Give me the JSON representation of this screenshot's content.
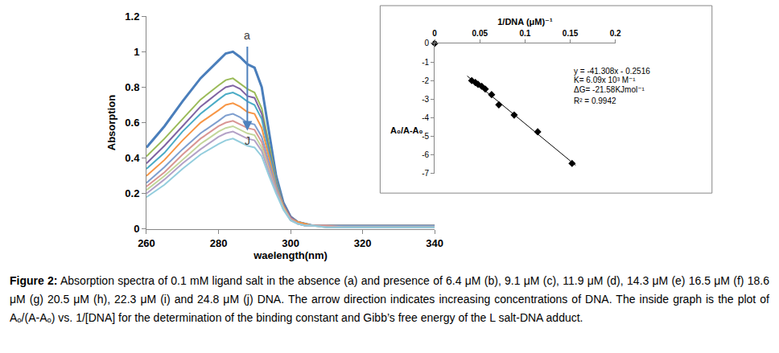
{
  "chart_data": [
    {
      "type": "line",
      "x_label": "waelength(nm)",
      "y_label": "Absorption",
      "x": [
        260,
        265,
        270,
        275,
        280,
        282,
        284,
        286,
        288,
        290,
        292,
        294,
        296,
        298,
        300,
        302,
        304,
        306,
        310,
        315,
        320,
        330,
        340
      ],
      "xlim": [
        260,
        340
      ],
      "xticks": [
        260,
        280,
        300,
        320,
        340
      ],
      "ylim": [
        0,
        1.2
      ],
      "yticks": [
        0,
        0.2,
        0.4,
        0.6,
        0.8,
        1,
        1.2
      ],
      "grid": false,
      "series": [
        {
          "color": "#4A7EBB",
          "values": [
            0.46,
            0.58,
            0.72,
            0.85,
            0.95,
            0.99,
            1.0,
            0.97,
            0.93,
            0.91,
            0.8,
            0.55,
            0.3,
            0.15,
            0.07,
            0.04,
            0.03,
            0.02,
            0.02,
            0.02,
            0.02,
            0.02,
            0.02
          ]
        },
        {
          "color": "#9BBB59",
          "values": [
            0.41,
            0.51,
            0.62,
            0.73,
            0.81,
            0.84,
            0.85,
            0.82,
            0.79,
            0.77,
            0.68,
            0.48,
            0.28,
            0.14,
            0.07,
            0.04,
            0.03,
            0.02,
            0.02,
            0.02,
            0.02,
            0.02,
            0.02
          ]
        },
        {
          "color": "#8064A2",
          "values": [
            0.37,
            0.47,
            0.58,
            0.69,
            0.77,
            0.8,
            0.81,
            0.79,
            0.75,
            0.74,
            0.65,
            0.45,
            0.27,
            0.14,
            0.07,
            0.04,
            0.03,
            0.02,
            0.02,
            0.02,
            0.02,
            0.02,
            0.02
          ]
        },
        {
          "color": "#4BACC6",
          "values": [
            0.34,
            0.43,
            0.55,
            0.65,
            0.73,
            0.76,
            0.77,
            0.75,
            0.72,
            0.7,
            0.62,
            0.43,
            0.26,
            0.13,
            0.06,
            0.04,
            0.03,
            0.02,
            0.02,
            0.02,
            0.02,
            0.02,
            0.02
          ]
        },
        {
          "color": "#F79646",
          "values": [
            0.3,
            0.39,
            0.5,
            0.6,
            0.67,
            0.7,
            0.71,
            0.69,
            0.66,
            0.65,
            0.57,
            0.4,
            0.24,
            0.13,
            0.06,
            0.04,
            0.03,
            0.02,
            0.02,
            0.02,
            0.02,
            0.02,
            0.02
          ]
        },
        {
          "color": "#7F9FCF",
          "values": [
            0.26,
            0.35,
            0.45,
            0.54,
            0.61,
            0.64,
            0.65,
            0.63,
            0.6,
            0.59,
            0.52,
            0.37,
            0.23,
            0.12,
            0.06,
            0.03,
            0.02,
            0.02,
            0.02,
            0.02,
            0.02,
            0.02,
            0.02
          ]
        },
        {
          "color": "#D99694",
          "values": [
            0.24,
            0.32,
            0.42,
            0.51,
            0.58,
            0.6,
            0.61,
            0.59,
            0.57,
            0.56,
            0.49,
            0.35,
            0.22,
            0.12,
            0.06,
            0.03,
            0.02,
            0.02,
            0.02,
            0.01,
            0.01,
            0.01,
            0.01
          ]
        },
        {
          "color": "#C3D69B",
          "values": [
            0.22,
            0.3,
            0.39,
            0.48,
            0.55,
            0.57,
            0.58,
            0.56,
            0.54,
            0.53,
            0.46,
            0.33,
            0.21,
            0.12,
            0.05,
            0.03,
            0.02,
            0.02,
            0.01,
            0.01,
            0.01,
            0.01,
            0.01
          ]
        },
        {
          "color": "#B3A2C7",
          "values": [
            0.2,
            0.28,
            0.37,
            0.45,
            0.52,
            0.54,
            0.55,
            0.53,
            0.51,
            0.5,
            0.44,
            0.32,
            0.21,
            0.11,
            0.05,
            0.03,
            0.02,
            0.02,
            0.01,
            0.01,
            0.01,
            0.01,
            0.01
          ]
        },
        {
          "color": "#93CDDD",
          "values": [
            0.18,
            0.25,
            0.34,
            0.42,
            0.48,
            0.5,
            0.51,
            0.49,
            0.47,
            0.46,
            0.41,
            0.3,
            0.2,
            0.11,
            0.05,
            0.03,
            0.02,
            0.02,
            0.01,
            0.01,
            0.01,
            0.01,
            0.01
          ]
        }
      ],
      "annotations": [
        {
          "text": "a",
          "x": 288,
          "y": 1.09
        },
        {
          "text": "J",
          "x": 288,
          "y": 0.5
        }
      ]
    },
    {
      "type": "scatter",
      "x_label": "1/DNA (μM)⁻¹",
      "y_label": "A₀/A-A₀",
      "xlim": [
        0,
        0.2
      ],
      "xticks": [
        0,
        0.05,
        0.1,
        0.15,
        0.2
      ],
      "ylim": [
        -7,
        0
      ],
      "yticks": [
        -7,
        -6,
        -5,
        -4,
        -3,
        -2,
        -1,
        0
      ],
      "grid": false,
      "series": [
        {
          "type": "scatter",
          "marker": "diamond",
          "color": "#000000",
          "x": [
            0,
            0.041,
            0.045,
            0.048,
            0.052,
            0.056,
            0.063,
            0.071,
            0.088,
            0.114,
            0.152
          ],
          "values": [
            0,
            -2.0,
            -2.1,
            -2.2,
            -2.3,
            -2.45,
            -2.75,
            -3.3,
            -3.85,
            -4.75,
            -6.45
          ]
        },
        {
          "type": "line",
          "color": "#000000",
          "x": [
            0.036,
            0.156
          ],
          "values": [
            -1.75,
            -6.55
          ]
        }
      ],
      "annotations": [
        {
          "text": "y = -41.308x - 0.2516",
          "x": 0.152,
          "y": -1.47
        },
        {
          "text": "K= 6.09x 10³ M⁻¹",
          "x": 0.152,
          "y": -1.97
        },
        {
          "text": "ΔG= -21.58KJmol⁻¹",
          "x": 0.152,
          "y": -2.5
        },
        {
          "text": "R² = 0.9942",
          "x": 0.152,
          "y": -3.08
        }
      ]
    }
  ],
  "caption": {
    "label": "Figure 2:",
    "text": "Absorption spectra of 0.1 mM ligand salt in the absence (a) and presence of 6.4 μM (b), 9.1 μM (c), 11.9 μM (d), 14.3 μM (e) 16.5 μM (f) 18.6 μM (g) 20.5 μM (h), 22.3 μM (i) and 24.8 μM (j) DNA. The arrow direction indicates increasing concentrations of DNA. The inside graph is the plot of Aₒ/(A-Aₒ) vs. 1/[DNA] for the determination of the binding constant and Gibb’s free energy of the L salt-DNA adduct."
  }
}
